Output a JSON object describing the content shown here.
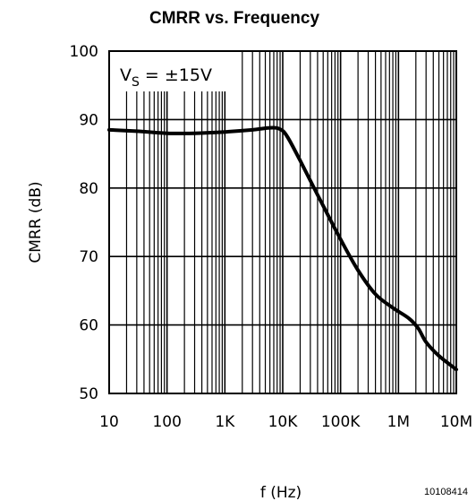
{
  "chart_data": {
    "type": "line",
    "title": "CMRR vs. Frequency",
    "xlabel": "f (Hz)",
    "ylabel": "CMRR (dB)",
    "x_scale": "log",
    "xlim": [
      10,
      10000000
    ],
    "ylim": [
      50,
      100
    ],
    "x_ticks": [
      {
        "value": 10,
        "label": "10"
      },
      {
        "value": 100,
        "label": "100"
      },
      {
        "value": 1000,
        "label": "1K"
      },
      {
        "value": 10000,
        "label": "10K"
      },
      {
        "value": 100000,
        "label": "100K"
      },
      {
        "value": 1000000,
        "label": "1M"
      },
      {
        "value": 10000000,
        "label": "10M"
      }
    ],
    "y_ticks": [
      {
        "value": 50,
        "label": "50"
      },
      {
        "value": 60,
        "label": "60"
      },
      {
        "value": 70,
        "label": "70"
      },
      {
        "value": 80,
        "label": "80"
      },
      {
        "value": 90,
        "label": "90"
      },
      {
        "value": 100,
        "label": "100"
      }
    ],
    "grid": true,
    "annotation": {
      "prefix": "V",
      "subscript": "S",
      "suffix": " = ±15V"
    },
    "figure_id": "10108414",
    "series": [
      {
        "x": [
          10,
          30,
          100,
          300,
          1000,
          3000,
          6000,
          9000,
          12000,
          20000,
          40000,
          100000,
          200000,
          400000,
          800000,
          1500000,
          2200000,
          3000000,
          5000000,
          10000000
        ],
        "y": [
          88.5,
          88.3,
          88.0,
          88.0,
          88.2,
          88.5,
          88.8,
          88.6,
          87.5,
          84.0,
          79.0,
          72.5,
          68.0,
          64.5,
          62.5,
          61.0,
          59.5,
          57.5,
          55.5,
          53.5
        ]
      }
    ],
    "color": "#000000"
  }
}
